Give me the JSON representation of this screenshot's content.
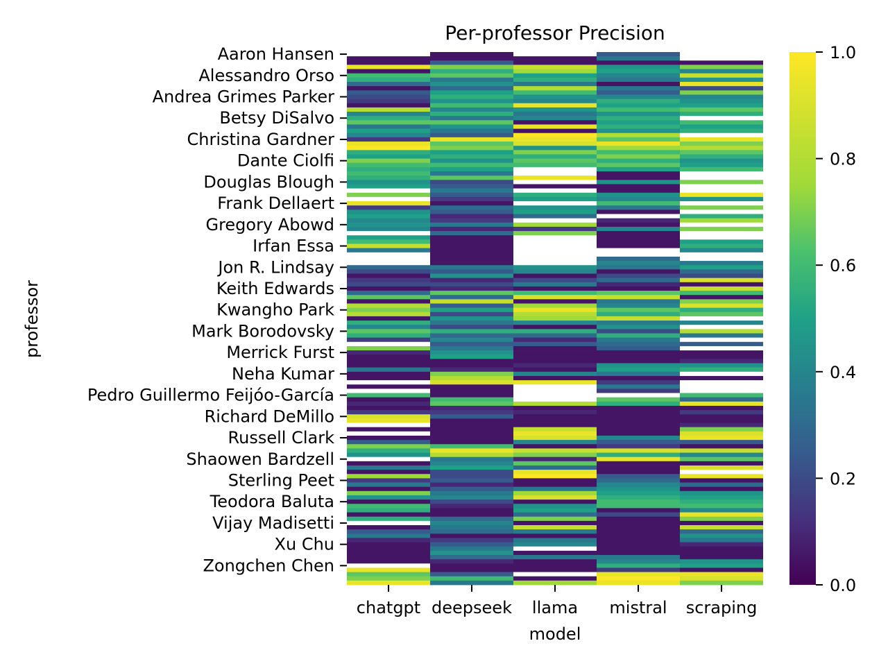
{
  "chart_data": {
    "type": "heatmap",
    "title": "Per-professor Precision",
    "xlabel": "model",
    "ylabel": "professor",
    "colormap": "viridis",
    "color_range": [
      0.0,
      1.0
    ],
    "colorbar_ticks": [
      "0.0",
      "0.2",
      "0.4",
      "0.6",
      "0.8",
      "1.0"
    ],
    "missing_color": "#ffffff",
    "columns": [
      "chatgpt",
      "deepseek",
      "llama",
      "mistral",
      "scraping"
    ],
    "row_count": 125,
    "ytick_labels": [
      "Aaron Hansen",
      "Alessandro Orso",
      "Andrea Grimes Parker",
      "Betsy DiSalvo",
      "Christina Gardner",
      "Dante Ciolfi",
      "Douglas Blough",
      "Frank Dellaert",
      "Gregory Abowd",
      "Irfan Essa",
      "Jon R. Lindsay",
      "Keith Edwards",
      "Kwangho Park",
      "Mark Borodovsky",
      "Merrick Furst",
      "Neha Kumar",
      "Pedro Guillermo Feijóo-García",
      "Richard DeMillo",
      "Russell Clark",
      "Shaowen Bardzell",
      "Sterling Peet",
      "Teodora Baluta",
      "Vijay Madisetti",
      "Xu Chu",
      "Zongchen Chen"
    ],
    "values_by_column": {
      "chatgpt": [
        null,
        0.05,
        0.05,
        0.95,
        0.05,
        0.6,
        0.55,
        0.3,
        0.05,
        0.25,
        0.2,
        0.15,
        0.05,
        0.8,
        0.4,
        0.55,
        0.65,
        0.35,
        0.5,
        0.4,
        0.15,
        0.95,
        1.0,
        0.55,
        0.5,
        0.7,
        0.6,
        0.55,
        0.6,
        0.55,
        0.45,
        0.5,
        null,
        0.7,
        null,
        0.95,
        0.15,
        0.45,
        0.5,
        0.4,
        0.45,
        0.4,
        null,
        0.5,
        0.6,
        0.85,
        0.35,
        null,
        null,
        null,
        0.3,
        0.2,
        0.05,
        0.15,
        0.2,
        0.05,
        0.3,
        0.65,
        0.05,
        0.8,
        0.7,
        0.8,
        0.05,
        0.55,
        0.4,
        0.65,
        0.55,
        0.15,
        null,
        0.7,
        0.1,
        0.05,
        0.05,
        0.05,
        0.35,
        0.05,
        0.05,
        null,
        0.05,
        null,
        0.6,
        0.05,
        0.1,
        0.05,
        0.15,
        0.9,
        0.95,
        null,
        0.05,
        null,
        0.05,
        0.25,
        0.7,
        0.55,
        0.45,
        null,
        0.05,
        0.35,
        0.05,
        0.75,
        0.15,
        0.35,
        0.05,
        0.7,
        0.45,
        0.05,
        0.6,
        0.55,
        0.05,
        0.55,
        null,
        0.05,
        0.25,
        0.35,
        0.1,
        0.05,
        0.05,
        0.05,
        0.05,
        0.05,
        null,
        0.95,
        0.65,
        0.7,
        0.95
      ],
      "deepseek": [
        0.05,
        0.05,
        0.25,
        0.7,
        0.55,
        0.65,
        0.35,
        0.45,
        0.3,
        0.5,
        0.55,
        0.45,
        0.6,
        0.4,
        0.55,
        0.35,
        0.65,
        0.45,
        0.35,
        0.25,
        0.95,
        0.65,
        0.7,
        0.5,
        0.55,
        0.45,
        0.6,
        0.5,
        0.35,
        0.65,
        0.2,
        0.25,
        0.35,
        0.25,
        0.15,
        0.05,
        0.3,
        0.25,
        0.1,
        0.15,
        0.35,
        0.1,
        0.3,
        0.05,
        0.05,
        0.05,
        0.05,
        0.05,
        0.05,
        0.05,
        0.35,
        0.25,
        0.45,
        0.1,
        0.2,
        0.1,
        0.65,
        0.3,
        0.85,
        0.25,
        0.5,
        0.2,
        0.45,
        0.35,
        0.2,
        0.55,
        0.3,
        0.4,
        0.25,
        0.35,
        0.45,
        0.5,
        0.05,
        0.05,
        0.1,
        0.7,
        0.8,
        0.9,
        0.05,
        0.05,
        0.05,
        0.6,
        0.65,
        0.1,
        0.15,
        0.25,
        0.05,
        0.05,
        0.05,
        0.05,
        0.05,
        0.05,
        0.6,
        0.95,
        0.8,
        0.35,
        0.4,
        0.5,
        0.2,
        0.2,
        0.25,
        0.1,
        0.25,
        0.35,
        0.4,
        0.2,
        0.1,
        0.05,
        0.05,
        0.3,
        0.4,
        0.35,
        0.3,
        0.05,
        0.15,
        0.25,
        0.35,
        0.45,
        0.3,
        0.1,
        0.05,
        0.05,
        0.25,
        0.6,
        0.35
      ],
      "llama": [
        null,
        0.05,
        0.05,
        0.85,
        0.75,
        0.5,
        0.55,
        0.35,
        0.8,
        0.6,
        0.45,
        0.4,
        0.95,
        0.45,
        0.35,
        0.4,
        0.05,
        0.95,
        0.05,
        1.0,
        0.95,
        0.9,
        0.45,
        0.7,
        0.55,
        0.65,
        0.6,
        null,
        null,
        0.95,
        null,
        0.05,
        null,
        0.55,
        0.5,
        null,
        0.45,
        0.5,
        0.3,
        null,
        0.75,
        0.15,
        0.7,
        null,
        null,
        null,
        null,
        null,
        null,
        null,
        0.45,
        0.4,
        0.05,
        0.2,
        0.35,
        0.05,
        0.6,
        0.9,
        0.05,
        0.75,
        0.95,
        0.8,
        0.75,
        0.4,
        0.05,
        0.55,
        0.3,
        0.1,
        0.25,
        0.05,
        0.05,
        0.05,
        0.05,
        0.1,
        0.05,
        0.4,
        0.05,
        0.95,
        null,
        null,
        null,
        null,
        0.8,
        0.05,
        0.1,
        0.05,
        0.05,
        0.05,
        0.85,
        0.95,
        0.9,
        0.4,
        0.05,
        0.85,
        0.7,
        0.1,
        0.65,
        0.3,
        0.95,
        1.0,
        0.05,
        0.05,
        0.35,
        0.75,
        0.9,
        0.05,
        0.45,
        0.5,
        0.3,
        0.7,
        0.05,
        0.85,
        0.35,
        0.05,
        0.35,
        0.4,
        null,
        0.05,
        0.35,
        0.05,
        0.05,
        0.05,
        null,
        0.05,
        0.75,
        0.7
      ],
      "mistral": [
        0.25,
        0.35,
        0.05,
        0.45,
        0.5,
        0.4,
        0.35,
        0.05,
        0.35,
        0.25,
        0.4,
        0.55,
        0.5,
        0.6,
        0.45,
        0.55,
        0.5,
        0.55,
        0.45,
        0.8,
        0.65,
        0.95,
        0.75,
        0.6,
        0.7,
        0.55,
        0.65,
        0.5,
        0.05,
        0.05,
        0.45,
        0.05,
        0.05,
        0.45,
        0.4,
        0.6,
        0.35,
        0.05,
        null,
        0.1,
        0.05,
        0.4,
        0.05,
        0.05,
        0.05,
        0.05,
        null,
        null,
        0.3,
        0.4,
        0.35,
        0.05,
        0.2,
        0.3,
        0.1,
        0.05,
        0.65,
        0.85,
        0.35,
        0.4,
        0.65,
        0.55,
        0.85,
        0.35,
        0.45,
        0.2,
        0.55,
        0.35,
        0.3,
        0.25,
        0.05,
        0.05,
        0.05,
        0.45,
        0.5,
        0.35,
        0.05,
        0.15,
        0.35,
        0.15,
        null,
        0.65,
        0.55,
        0.05,
        0.05,
        0.05,
        0.05,
        0.05,
        0.05,
        0.05,
        0.4,
        0.25,
        0.15,
        0.9,
        0.55,
        0.95,
        0.05,
        0.05,
        0.05,
        0.25,
        0.3,
        0.4,
        0.45,
        0.5,
        0.55,
        0.6,
        0.6,
        0.05,
        0.2,
        0.05,
        0.05,
        0.05,
        0.05,
        0.05,
        0.05,
        0.05,
        0.05,
        0.05,
        0.35,
        0.4,
        0.55,
        0.15,
        0.95,
        1.0,
        0.95
      ],
      "scraping": [
        null,
        null,
        0.05,
        0.7,
        0.4,
        0.85,
        0.45,
        0.95,
        0.2,
        0.7,
        0.4,
        0.45,
        0.5,
        0.65,
        0.55,
        null,
        0.6,
        0.5,
        0.55,
        null,
        0.95,
        0.7,
        0.8,
        0.65,
        0.55,
        0.45,
        0.5,
        0.6,
        null,
        null,
        0.7,
        null,
        null,
        0.95,
        0.45,
        null,
        0.7,
        null,
        0.55,
        0.75,
        null,
        0.7,
        null,
        null,
        0.5,
        0.55,
        0.4,
        null,
        null,
        0.35,
        0.5,
        0.3,
        0.2,
        0.9,
        0.05,
        0.85,
        0.6,
        0.05,
        0.7,
        0.9,
        0.55,
        0.65,
        null,
        0.4,
        null,
        0.8,
        0.35,
        null,
        0.25,
        null,
        0.05,
        0.05,
        0.1,
        0.45,
        0.55,
        null,
        0.05,
        null,
        null,
        null,
        0.6,
        0.3,
        0.95,
        0.05,
        0.15,
        0.05,
        0.05,
        0.1,
        0.7,
        0.9,
        0.95,
        0.25,
        0.05,
        0.85,
        0.4,
        0.65,
        0.05,
        0.9,
        null,
        0.95,
        0.05,
        0.3,
        0.05,
        0.45,
        0.5,
        0.55,
        0.6,
        0.4,
        0.95,
        0.7,
        0.05,
        0.85,
        0.3,
        0.45,
        0.35,
        0.1,
        0.05,
        0.05,
        0.05,
        0.45,
        0.5,
        0.05,
        0.95,
        0.9,
        0.7
      ]
    }
  }
}
